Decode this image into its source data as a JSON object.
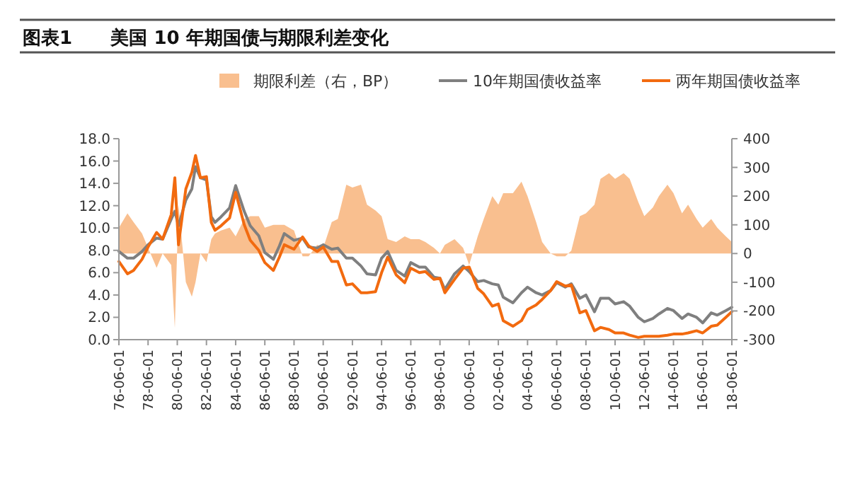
{
  "chart_data": {
    "type": "line",
    "title": "图表1      美国 10 年期国债与期限利差变化",
    "legend": "top",
    "grid": false,
    "x": [
      "1976-06",
      "1977-01",
      "1977-06",
      "1978-01",
      "1978-06",
      "1979-01",
      "1979-06",
      "1980-01",
      "1980-04",
      "1980-07",
      "1981-01",
      "1981-06",
      "1981-09",
      "1982-01",
      "1982-06",
      "1982-10",
      "1983-01",
      "1983-06",
      "1984-01",
      "1984-06",
      "1985-01",
      "1985-06",
      "1986-01",
      "1986-06",
      "1987-01",
      "1987-06",
      "1987-10",
      "1988-06",
      "1989-01",
      "1989-06",
      "1990-01",
      "1990-06",
      "1991-01",
      "1991-06",
      "1992-01",
      "1992-06",
      "1993-01",
      "1993-06",
      "1994-01",
      "1994-06",
      "1994-11",
      "1995-06",
      "1996-01",
      "1996-06",
      "1997-01",
      "1997-06",
      "1998-01",
      "1998-06",
      "1998-10",
      "1999-06",
      "2000-01",
      "2000-06",
      "2001-01",
      "2001-06",
      "2002-01",
      "2002-06",
      "2002-10",
      "2003-06",
      "2004-01",
      "2004-06",
      "2005-01",
      "2005-06",
      "2006-01",
      "2006-06",
      "2007-01",
      "2007-06",
      "2008-01",
      "2008-06",
      "2009-01",
      "2009-06",
      "2010-01",
      "2010-06",
      "2011-01",
      "2011-06",
      "2012-01",
      "2012-06",
      "2013-01",
      "2013-06",
      "2014-01",
      "2014-06",
      "2015-01",
      "2015-06",
      "2016-01",
      "2016-06",
      "2017-01",
      "2017-06",
      "2018-01",
      "2018-06"
    ],
    "series": [
      {
        "name": "期限利差（右，BP）",
        "type": "area",
        "axis": "y2",
        "color": "#f9bf8f",
        "values": [
          90,
          140,
          110,
          70,
          20,
          -50,
          0,
          -40,
          -260,
          170,
          -100,
          -150,
          -100,
          0,
          -30,
          50,
          70,
          80,
          90,
          60,
          120,
          130,
          130,
          90,
          100,
          100,
          100,
          80,
          -10,
          -10,
          30,
          20,
          110,
          120,
          240,
          230,
          240,
          170,
          150,
          130,
          50,
          40,
          60,
          50,
          50,
          40,
          20,
          0,
          30,
          50,
          20,
          -40,
          60,
          120,
          200,
          170,
          210,
          210,
          250,
          200,
          110,
          40,
          0,
          -10,
          -10,
          10,
          130,
          140,
          170,
          260,
          280,
          260,
          280,
          260,
          180,
          130,
          160,
          200,
          240,
          210,
          140,
          170,
          120,
          90,
          120,
          90,
          60,
          40
        ]
      },
      {
        "name": "10年期国债收益率",
        "color": "#7f7f7f",
        "values": [
          7.9,
          7.3,
          7.3,
          7.9,
          8.5,
          9.1,
          9.0,
          10.8,
          11.5,
          10.2,
          12.5,
          13.5,
          15.5,
          14.5,
          14.3,
          11.0,
          10.5,
          11.0,
          11.8,
          13.8,
          11.5,
          10.2,
          9.3,
          7.8,
          7.2,
          8.4,
          9.5,
          8.9,
          9.1,
          8.3,
          8.2,
          8.5,
          8.1,
          8.2,
          7.3,
          7.3,
          6.6,
          5.9,
          5.8,
          7.3,
          7.9,
          6.2,
          5.7,
          6.9,
          6.5,
          6.5,
          5.6,
          5.5,
          4.5,
          5.9,
          6.6,
          6.1,
          5.2,
          5.3,
          5.0,
          4.9,
          3.8,
          3.3,
          4.2,
          4.7,
          4.2,
          4.0,
          4.4,
          5.1,
          4.7,
          5.0,
          3.7,
          4.0,
          2.5,
          3.7,
          3.7,
          3.2,
          3.4,
          3.0,
          2.0,
          1.6,
          1.9,
          2.3,
          2.8,
          2.6,
          1.9,
          2.3,
          2.0,
          1.5,
          2.4,
          2.2,
          2.6,
          2.9
        ]
      },
      {
        "name": "两年期国债收益率",
        "color": "#f26a0f",
        "values": [
          7.0,
          5.9,
          6.2,
          7.2,
          8.3,
          9.6,
          9.0,
          11.2,
          14.5,
          8.5,
          13.5,
          15.0,
          16.5,
          14.5,
          14.6,
          10.5,
          9.8,
          10.2,
          10.9,
          13.2,
          10.3,
          8.9,
          8.0,
          6.9,
          6.2,
          7.4,
          8.5,
          8.1,
          9.2,
          8.4,
          7.9,
          8.3,
          7.0,
          7.0,
          4.9,
          5.0,
          4.2,
          4.2,
          4.3,
          6.0,
          7.4,
          5.8,
          5.1,
          6.4,
          6.0,
          6.1,
          5.4,
          5.5,
          4.2,
          5.4,
          6.4,
          6.5,
          4.6,
          4.1,
          3.0,
          3.2,
          1.7,
          1.2,
          1.7,
          2.7,
          3.1,
          3.6,
          4.4,
          5.2,
          4.8,
          4.9,
          2.4,
          2.6,
          0.8,
          1.1,
          0.9,
          0.6,
          0.6,
          0.4,
          0.2,
          0.3,
          0.3,
          0.3,
          0.4,
          0.5,
          0.5,
          0.6,
          0.8,
          0.6,
          1.2,
          1.3,
          2.0,
          2.5
        ]
      }
    ],
    "xlim": [
      "1976-06",
      "2018-06"
    ],
    "xticks": [
      {
        "value": "1976-06",
        "label": "76-06-01"
      },
      {
        "value": "1978-06",
        "label": "78-06-01"
      },
      {
        "value": "1980-06",
        "label": "80-06-01"
      },
      {
        "value": "1982-06",
        "label": "82-06-01"
      },
      {
        "value": "1984-06",
        "label": "84-06-01"
      },
      {
        "value": "1986-06",
        "label": "86-06-01"
      },
      {
        "value": "1988-06",
        "label": "88-06-01"
      },
      {
        "value": "1990-06",
        "label": "90-06-01"
      },
      {
        "value": "1992-06",
        "label": "92-06-01"
      },
      {
        "value": "1994-06",
        "label": "94-06-01"
      },
      {
        "value": "1996-06",
        "label": "96-06-01"
      },
      {
        "value": "1998-06",
        "label": "98-06-01"
      },
      {
        "value": "2000-06",
        "label": "00-06-01"
      },
      {
        "value": "2002-06",
        "label": "02-06-01"
      },
      {
        "value": "2004-06",
        "label": "04-06-01"
      },
      {
        "value": "2006-06",
        "label": "06-06-01"
      },
      {
        "value": "2008-06",
        "label": "08-06-01"
      },
      {
        "value": "2010-06",
        "label": "10-06-01"
      },
      {
        "value": "2012-06",
        "label": "12-06-01"
      },
      {
        "value": "2014-06",
        "label": "14-06-01"
      },
      {
        "value": "2016-06",
        "label": "16-06-01"
      },
      {
        "value": "2018-06",
        "label": "18-06-01"
      }
    ],
    "ylim": [
      0,
      18
    ],
    "yticks": [
      {
        "value": 0,
        "label": "0.0"
      },
      {
        "value": 2,
        "label": "2.0"
      },
      {
        "value": 4,
        "label": "4.0"
      },
      {
        "value": 6,
        "label": "6.0"
      },
      {
        "value": 8,
        "label": "8.0"
      },
      {
        "value": 10,
        "label": "10.0"
      },
      {
        "value": 12,
        "label": "12.0"
      },
      {
        "value": 14,
        "label": "14.0"
      },
      {
        "value": 16,
        "label": "16.0"
      },
      {
        "value": 18,
        "label": "18.0"
      }
    ],
    "y2lim": [
      -300,
      400
    ],
    "y2ticks": [
      -300,
      -200,
      -100,
      0,
      100,
      200,
      300,
      400
    ]
  }
}
